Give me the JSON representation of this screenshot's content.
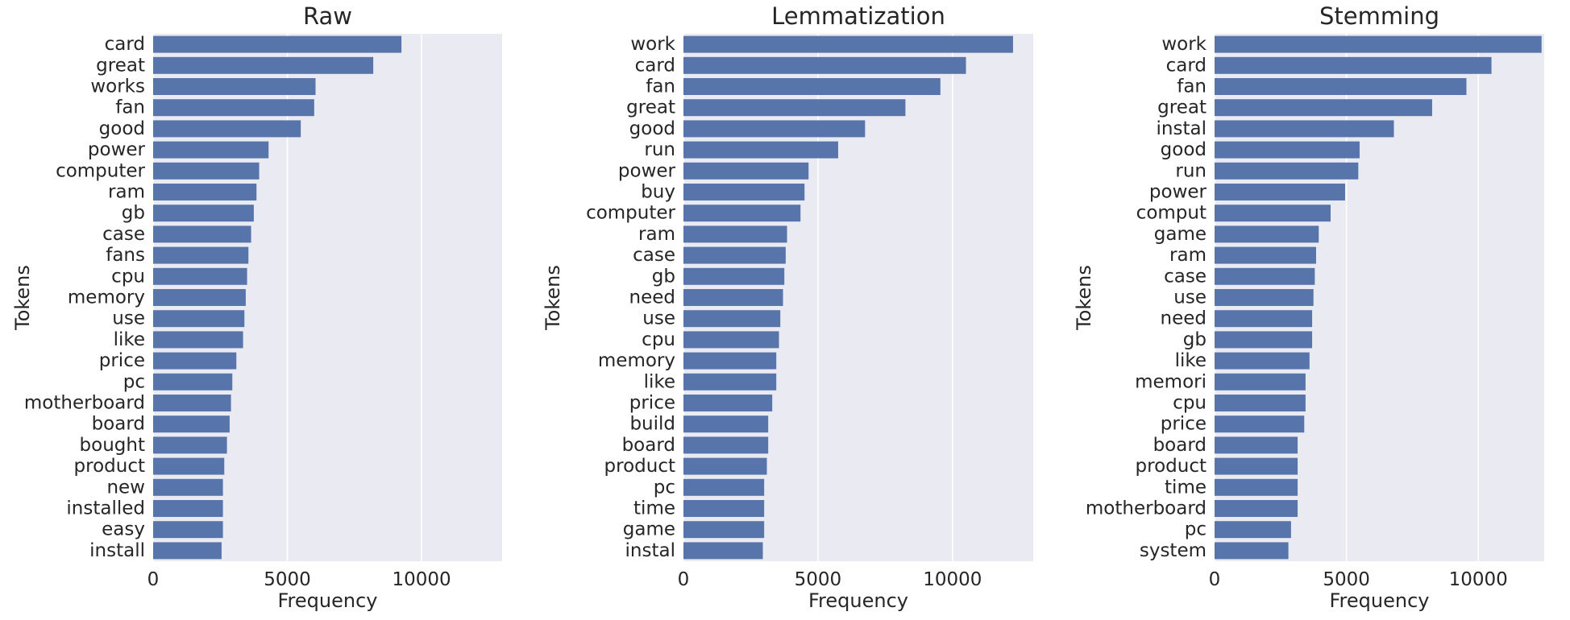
{
  "chart_data": [
    {
      "type": "bar",
      "orientation": "horizontal",
      "title": "Raw",
      "xlabel": "Frequency",
      "ylabel": "Tokens",
      "xlim": [
        0,
        13000
      ],
      "xticks": [
        0,
        5000,
        10000
      ],
      "grid": true,
      "color": "#5875ab",
      "categories": [
        "card",
        "great",
        "works",
        "fan",
        "good",
        "power",
        "computer",
        "ram",
        "gb",
        "case",
        "fans",
        "cpu",
        "memory",
        "use",
        "like",
        "price",
        "pc",
        "motherboard",
        "board",
        "bought",
        "product",
        "new",
        "installed",
        "easy",
        "install"
      ],
      "values": [
        9250,
        8200,
        6050,
        6000,
        5500,
        4300,
        3950,
        3850,
        3750,
        3650,
        3550,
        3500,
        3450,
        3400,
        3350,
        3100,
        2950,
        2900,
        2850,
        2750,
        2650,
        2600,
        2600,
        2600,
        2550
      ]
    },
    {
      "type": "bar",
      "orientation": "horizontal",
      "title": "Lemmatization",
      "xlabel": "Frequency",
      "ylabel": "Tokens",
      "xlim": [
        0,
        13000
      ],
      "xticks": [
        0,
        5000,
        10000
      ],
      "grid": true,
      "color": "#5875ab",
      "categories": [
        "work",
        "card",
        "fan",
        "great",
        "good",
        "run",
        "power",
        "buy",
        "computer",
        "ram",
        "case",
        "gb",
        "need",
        "use",
        "cpu",
        "memory",
        "like",
        "price",
        "build",
        "board",
        "product",
        "pc",
        "time",
        "game",
        "instal"
      ],
      "values": [
        12250,
        10500,
        9550,
        8250,
        6750,
        5750,
        4650,
        4500,
        4350,
        3850,
        3800,
        3750,
        3700,
        3600,
        3550,
        3450,
        3450,
        3300,
        3150,
        3150,
        3100,
        3000,
        3000,
        3000,
        2950
      ]
    },
    {
      "type": "bar",
      "orientation": "horizontal",
      "title": "Stemming",
      "xlabel": "Frequency",
      "ylabel": "Tokens",
      "xlim": [
        0,
        12500
      ],
      "xticks": [
        0,
        5000,
        10000
      ],
      "grid": true,
      "color": "#5875ab",
      "categories": [
        "work",
        "card",
        "fan",
        "great",
        "instal",
        "good",
        "run",
        "power",
        "comput",
        "game",
        "ram",
        "case",
        "use",
        "need",
        "gb",
        "like",
        "memori",
        "cpu",
        "price",
        "board",
        "product",
        "time",
        "motherboard",
        "pc",
        "system"
      ],
      "values": [
        12400,
        10500,
        9550,
        8250,
        6800,
        5500,
        5450,
        4950,
        4400,
        3950,
        3850,
        3800,
        3750,
        3700,
        3700,
        3600,
        3450,
        3450,
        3400,
        3150,
        3150,
        3150,
        3150,
        2900,
        2800
      ]
    }
  ]
}
